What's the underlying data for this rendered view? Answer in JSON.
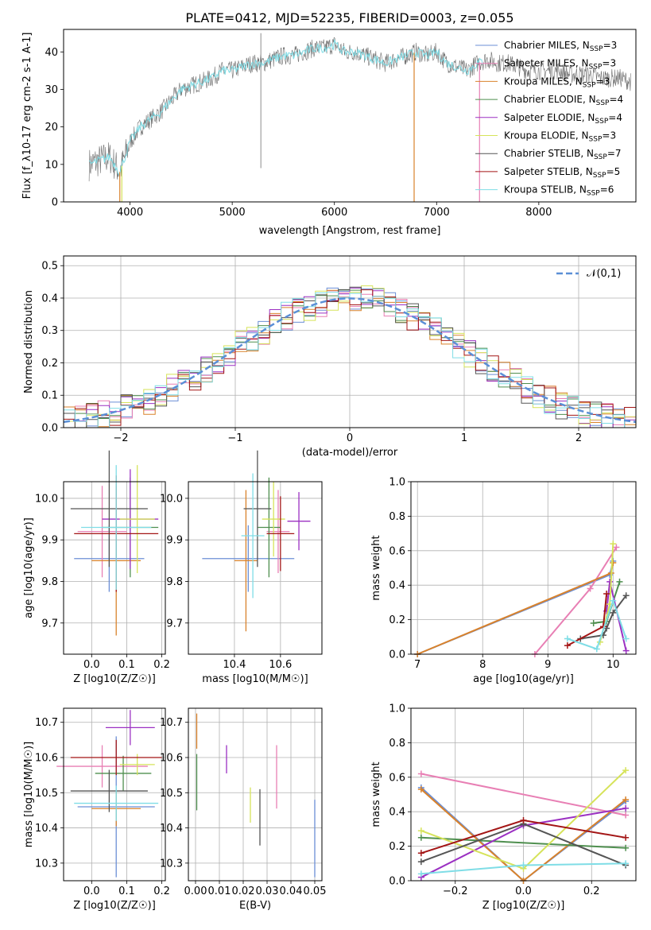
{
  "title": "PLATE=0412, MJD=52235, FIBERID=0003, z=0.055",
  "colors": [
    "#6b8fd6",
    "#e87fb4",
    "#d9822b",
    "#4f8f4f",
    "#9b30c2",
    "#d6e35a",
    "#555555",
    "#a31515",
    "#7fdde6"
  ],
  "legend": [
    {
      "name": "Chabrier MILES, N",
      "sub": "SSP",
      "suffix": "=3"
    },
    {
      "name": "Salpeter MILES, N",
      "sub": "SSP",
      "suffix": "=3"
    },
    {
      "name": "Kroupa MILES, N",
      "sub": "SSP",
      "suffix": "=3"
    },
    {
      "name": "Chabrier ELODIE, N",
      "sub": "SSP",
      "suffix": "=4"
    },
    {
      "name": "Salpeter ELODIE, N",
      "sub": "SSP",
      "suffix": "=4"
    },
    {
      "name": "Kroupa ELODIE, N",
      "sub": "SSP",
      "suffix": "=3"
    },
    {
      "name": "Chabrier STELIB, N",
      "sub": "SSP",
      "suffix": "=7"
    },
    {
      "name": "Salpeter STELIB, N",
      "sub": "SSP",
      "suffix": "=5"
    },
    {
      "name": "Kroupa STELIB, N",
      "sub": "SSP",
      "suffix": "=6"
    }
  ],
  "chart_data": [
    {
      "id": "spectrum",
      "type": "line",
      "xlabel": "wavelength [Angstrom, rest frame]",
      "ylabel": "Flux [f_λ10^-17 erg cm^-2 s^-1 A^-1]",
      "xlim": [
        3350,
        8950
      ],
      "ylim": [
        0,
        46
      ],
      "xticks": [
        4000,
        5000,
        6000,
        7000,
        8000
      ],
      "yticks": [
        0,
        10,
        20,
        30,
        40
      ],
      "grid": false,
      "legend": "right",
      "x": [
        3600,
        3700,
        3800,
        3900,
        4000,
        4100,
        4200,
        4300,
        4400,
        4500,
        4600,
        4700,
        4800,
        4900,
        5000,
        5100,
        5200,
        5300,
        5400,
        5500,
        5600,
        5700,
        5800,
        5900,
        6000,
        6100,
        6200,
        6300,
        6400,
        6500,
        6600,
        6700,
        6800,
        6900,
        7000,
        7100,
        7200,
        7300,
        7400,
        7500,
        7600,
        7700,
        7800,
        7900,
        8000,
        8100,
        8200,
        8300,
        8400,
        8500,
        8600,
        8700,
        8800,
        8900
      ],
      "y": [
        10,
        11,
        12,
        8,
        16,
        20,
        22,
        24,
        27,
        30,
        31,
        32,
        33,
        35,
        35,
        36,
        37,
        37,
        38,
        39,
        39,
        40,
        41,
        41,
        42,
        40,
        40,
        39,
        38,
        37,
        38,
        39,
        40,
        39,
        40,
        37,
        36,
        35,
        37,
        38,
        37,
        37,
        36,
        35,
        35,
        35,
        35,
        34,
        34,
        34,
        33,
        33,
        33,
        32
      ]
    },
    {
      "id": "residuals",
      "type": "line",
      "xlabel": "(data-model)/error",
      "ylabel": "Normed distribution",
      "xlim": [
        -2.5,
        2.5
      ],
      "ylim": [
        0,
        0.53
      ],
      "xticks": [
        -2,
        -1,
        0,
        1,
        2
      ],
      "yticks": [
        0,
        0.1,
        0.2,
        0.3,
        0.4,
        0.5
      ],
      "grid": true,
      "legend": "top-right",
      "series": [
        {
          "name": "𝒩(0,1)",
          "mu": 0,
          "sigma": 1
        }
      ]
    },
    {
      "id": "age_vs_Z",
      "type": "scatter",
      "xlabel": "Z [log10(Z/Z☉)]",
      "ylabel": "age  [log10(age/yr)]",
      "xlim": [
        -0.08,
        0.21
      ],
      "ylim": [
        9.625,
        10.04
      ],
      "xticks": [
        0,
        0.1,
        0.2
      ],
      "yticks": [
        9.7,
        9.8,
        9.9,
        10.0
      ],
      "grid": true,
      "points": [
        [
          0.05,
          9.855,
          0.1,
          0.08
        ],
        [
          0.03,
          9.92,
          0.07,
          0.11
        ],
        [
          0.07,
          9.85,
          0.07,
          0.18
        ],
        [
          0.11,
          9.93,
          0.08,
          0.12
        ],
        [
          0.11,
          9.95,
          0.08,
          0.12
        ],
        [
          0.13,
          9.95,
          0.05,
          0.13
        ],
        [
          0.05,
          9.975,
          0.11,
          0.14
        ],
        [
          0.07,
          9.915,
          0.12,
          0.14
        ],
        [
          0.07,
          9.93,
          0.1,
          0.15
        ]
      ]
    },
    {
      "id": "age_vs_mass",
      "type": "scatter",
      "xlabel": "mass [log10(M/M☉)]",
      "ylabel": "",
      "xlim": [
        10.2,
        10.78
      ],
      "ylim": [
        9.625,
        10.04
      ],
      "xticks": [
        10.4,
        10.6
      ],
      "yticks": [
        9.7,
        9.8,
        9.9,
        10.0
      ],
      "grid": true,
      "points": [
        [
          10.46,
          9.855,
          0.2,
          0.08
        ],
        [
          10.59,
          9.92,
          0.05,
          0.1
        ],
        [
          10.45,
          9.85,
          0.05,
          0.17
        ],
        [
          10.55,
          9.93,
          0.05,
          0.12
        ],
        [
          10.68,
          9.945,
          0.05,
          0.07
        ],
        [
          10.57,
          9.95,
          0.05,
          0.09
        ],
        [
          10.5,
          9.975,
          0.06,
          0.14
        ],
        [
          10.6,
          9.915,
          0.06,
          0.09
        ],
        [
          10.48,
          9.91,
          0.05,
          0.15
        ]
      ]
    },
    {
      "id": "age_weights",
      "type": "line",
      "xlabel": "age  [log10(age/yr)]",
      "ylabel": "mass weight",
      "xlim": [
        6.9,
        10.35
      ],
      "ylim": [
        0,
        1
      ],
      "xticks": [
        7,
        8,
        9,
        10
      ],
      "yticks": [
        0,
        0.2,
        0.4,
        0.6,
        0.8,
        1.0
      ],
      "grid": true,
      "series": [
        {
          "x": [
            7.0,
            9.95,
            10.0
          ],
          "y": [
            0.0,
            0.46,
            0.54
          ]
        },
        {
          "x": [
            8.8,
            9.65,
            10.05
          ],
          "y": [
            0.0,
            0.38,
            0.62
          ]
        },
        {
          "x": [
            7.0,
            9.97,
            10.0
          ],
          "y": [
            0.0,
            0.47,
            0.53
          ]
        },
        {
          "x": [
            9.7,
            9.9,
            10.1
          ],
          "y": [
            0.18,
            0.19,
            0.42
          ]
        },
        {
          "x": [
            9.9,
            9.95,
            10.2
          ],
          "y": [
            0.25,
            0.42,
            0.02
          ]
        },
        {
          "x": [
            9.8,
            9.95,
            10.0
          ],
          "y": [
            0.07,
            0.29,
            0.64
          ]
        },
        {
          "x": [
            9.5,
            9.85,
            9.9,
            10.0,
            10.2
          ],
          "y": [
            0.09,
            0.11,
            0.15,
            0.24,
            0.34
          ]
        },
        {
          "x": [
            9.3,
            9.85,
            9.9
          ],
          "y": [
            0.05,
            0.16,
            0.35
          ]
        },
        {
          "x": [
            9.3,
            9.75,
            10.0,
            10.2
          ],
          "y": [
            0.09,
            0.03,
            0.31,
            0.09
          ]
        }
      ]
    },
    {
      "id": "mass_vs_Z",
      "type": "scatter",
      "xlabel": "Z [log10(Z/Z☉)]",
      "ylabel": "mass [log10(M/M☉)]",
      "xlim": [
        -0.08,
        0.21
      ],
      "ylim": [
        10.25,
        10.74
      ],
      "xticks": [
        0,
        0.1,
        0.2
      ],
      "yticks": [
        10.3,
        10.4,
        10.5,
        10.6,
        10.7
      ],
      "grid": true,
      "points": [
        [
          0.07,
          10.46,
          0.11,
          0.2
        ],
        [
          0.03,
          10.575,
          0.13,
          0.06
        ],
        [
          0.07,
          10.455,
          0.07,
          0.05
        ],
        [
          0.09,
          10.555,
          0.08,
          0.05
        ],
        [
          0.11,
          10.685,
          0.07,
          0.05
        ],
        [
          0.13,
          10.58,
          0.05,
          0.03
        ],
        [
          0.05,
          10.505,
          0.11,
          0.06
        ],
        [
          0.07,
          10.6,
          0.13,
          0.05
        ],
        [
          0.07,
          10.47,
          0.12,
          0.05
        ]
      ]
    },
    {
      "id": "mass_vs_EBV",
      "type": "scatter",
      "xlabel": "E(B-V)",
      "ylabel": "",
      "xlim": [
        -0.003,
        0.053
      ],
      "ylim": [
        10.25,
        10.74
      ],
      "xticks": [
        0,
        0.01,
        0.02,
        0.03,
        0.04,
        0.05
      ],
      "yticks": [
        10.3,
        10.4,
        10.5,
        10.6,
        10.7
      ],
      "grid": true,
      "points": [
        [
          0.05,
          10.37,
          0,
          0.11
        ],
        [
          0.034,
          10.545,
          0,
          0.09
        ],
        [
          0.0005,
          10.675,
          0,
          0.05
        ],
        [
          0.0005,
          10.53,
          0,
          0.08
        ],
        [
          0.013,
          10.595,
          0,
          0.04
        ],
        [
          0.023,
          10.465,
          0,
          0.05
        ],
        [
          0.027,
          10.43,
          0,
          0.08
        ]
      ]
    },
    {
      "id": "Z_weights",
      "type": "line",
      "xlabel": "Z [log10(Z/Z☉)]",
      "ylabel": "mass weight",
      "xlim": [
        -0.33,
        0.33
      ],
      "ylim": [
        0,
        1
      ],
      "xticks": [
        -0.2,
        0,
        0.2
      ],
      "yticks": [
        0,
        0.2,
        0.4,
        0.6,
        0.8,
        1.0
      ],
      "grid": true,
      "series": [
        {
          "x": [
            -0.3,
            0.0,
            0.3
          ],
          "y": [
            0.54,
            0.0,
            0.46
          ]
        },
        {
          "x": [
            -0.3,
            0.3
          ],
          "y": [
            0.62,
            0.38
          ]
        },
        {
          "x": [
            -0.3,
            0.0,
            0.3
          ],
          "y": [
            0.53,
            0.0,
            0.47
          ]
        },
        {
          "x": [
            -0.3,
            0.3
          ],
          "y": [
            0.25,
            0.19
          ]
        },
        {
          "x": [
            -0.3,
            0.0,
            0.3
          ],
          "y": [
            0.02,
            0.32,
            0.42
          ]
        },
        {
          "x": [
            -0.3,
            0.0,
            0.3
          ],
          "y": [
            0.29,
            0.07,
            0.64
          ]
        },
        {
          "x": [
            -0.3,
            0.0,
            0.3
          ],
          "y": [
            0.11,
            0.33,
            0.09
          ]
        },
        {
          "x": [
            -0.3,
            0.0,
            0.3
          ],
          "y": [
            0.16,
            0.35,
            0.25
          ]
        },
        {
          "x": [
            -0.3,
            0.0,
            0.3
          ],
          "y": [
            0.04,
            0.09,
            0.1
          ]
        }
      ]
    }
  ]
}
